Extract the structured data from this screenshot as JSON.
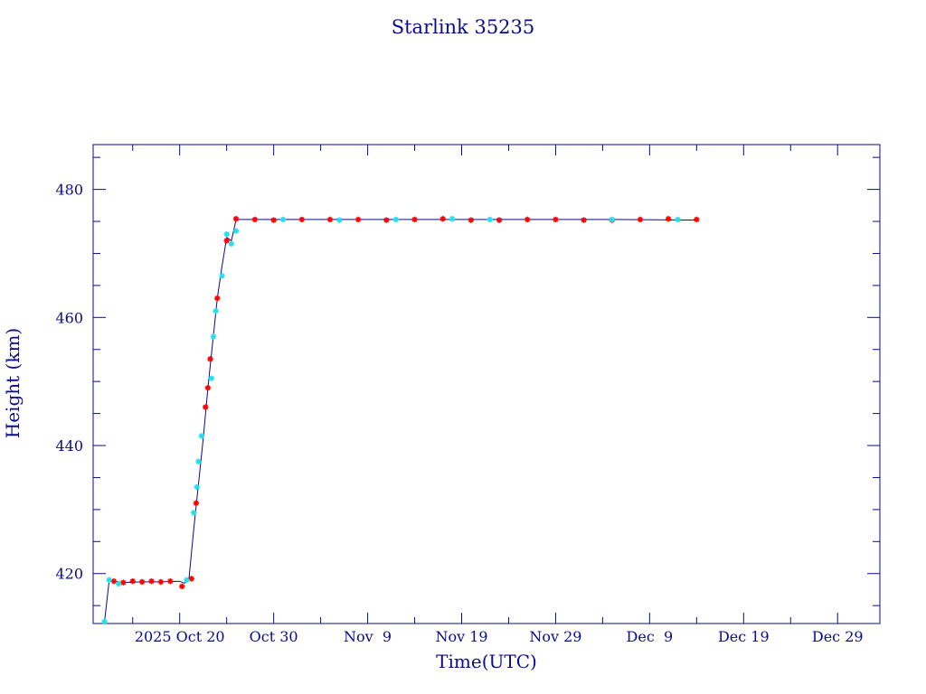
{
  "chart_data": {
    "type": "scatter",
    "title": "Starlink 35235",
    "xlabel": "Time(UTC)",
    "ylabel": "Height (km)",
    "x_ticks": [
      {
        "label": "2025 Oct 20",
        "date": "2025-10-20"
      },
      {
        "label": "Oct 30",
        "date": "2025-10-30"
      },
      {
        "label": "Nov  9",
        "date": "2025-11-09"
      },
      {
        "label": "Nov 19",
        "date": "2025-11-19"
      },
      {
        "label": "Nov 29",
        "date": "2025-11-29"
      },
      {
        "label": "Dec  9",
        "date": "2025-12-09"
      },
      {
        "label": "Dec 19",
        "date": "2025-12-19"
      },
      {
        "label": "Dec 29",
        "date": "2025-12-29"
      }
    ],
    "y_ticks": [
      420,
      440,
      460,
      480
    ],
    "xlim": [
      "2025-10-10T19:00",
      "2026-01-02T12:00"
    ],
    "ylim": [
      412.2,
      487.0
    ],
    "grid": false,
    "series": [
      {
        "color": "#0a0a8c",
        "marker": "line",
        "points": [
          [
            "2025-10-12",
            412.5
          ],
          [
            "2025-10-12T12:00",
            419.0
          ],
          [
            "2025-10-14",
            418.6
          ],
          [
            "2025-10-16",
            418.7
          ],
          [
            "2025-10-18",
            418.7
          ],
          [
            "2025-10-20",
            418.8
          ],
          [
            "2025-10-20T12:00",
            418.5
          ],
          [
            "2025-10-21",
            419.4
          ],
          [
            "2025-10-21T12:00",
            427.0
          ],
          [
            "2025-10-22",
            434.0
          ],
          [
            "2025-10-22T12:00",
            441.0
          ],
          [
            "2025-10-23",
            449.0
          ],
          [
            "2025-10-23T12:00",
            456.0
          ],
          [
            "2025-10-24",
            463.0
          ],
          [
            "2025-10-24T12:00",
            468.0
          ],
          [
            "2025-10-25",
            472.5
          ],
          [
            "2025-10-25T12:00",
            472.0
          ],
          [
            "2025-10-26",
            475.3
          ],
          [
            "2025-11-05",
            475.3
          ],
          [
            "2025-11-15",
            475.3
          ],
          [
            "2025-11-25",
            475.3
          ],
          [
            "2025-12-05",
            475.3
          ],
          [
            "2025-12-14",
            475.2
          ]
        ]
      },
      {
        "color": "#ff0000",
        "marker": "star",
        "points": [
          [
            "2025-10-13",
            418.8
          ],
          [
            "2025-10-14",
            418.6
          ],
          [
            "2025-10-15",
            418.8
          ],
          [
            "2025-10-16",
            418.7
          ],
          [
            "2025-10-17",
            418.8
          ],
          [
            "2025-10-18",
            418.7
          ],
          [
            "2025-10-19",
            418.8
          ],
          [
            "2025-10-20T06:00",
            418.0
          ],
          [
            "2025-10-21T06:00",
            419.2
          ],
          [
            "2025-10-21T18:00",
            431.0
          ],
          [
            "2025-10-22T18:00",
            446.0
          ],
          [
            "2025-10-23",
            449.0
          ],
          [
            "2025-10-23T06:00",
            453.5
          ],
          [
            "2025-10-24",
            463.0
          ],
          [
            "2025-10-25",
            472.0
          ],
          [
            "2025-10-26",
            475.4
          ],
          [
            "2025-10-28",
            475.3
          ],
          [
            "2025-10-30",
            475.2
          ],
          [
            "2025-11-02",
            475.3
          ],
          [
            "2025-11-05",
            475.3
          ],
          [
            "2025-11-08",
            475.3
          ],
          [
            "2025-11-11",
            475.2
          ],
          [
            "2025-11-14",
            475.3
          ],
          [
            "2025-11-17",
            475.4
          ],
          [
            "2025-11-20",
            475.2
          ],
          [
            "2025-11-23",
            475.2
          ],
          [
            "2025-11-26",
            475.3
          ],
          [
            "2025-11-29",
            475.3
          ],
          [
            "2025-12-02",
            475.2
          ],
          [
            "2025-12-05",
            475.2
          ],
          [
            "2025-12-08",
            475.3
          ],
          [
            "2025-12-11",
            475.4
          ],
          [
            "2025-12-14",
            475.3
          ]
        ]
      },
      {
        "color": "#22e0ee",
        "marker": "star",
        "points": [
          [
            "2025-10-12",
            412.5
          ],
          [
            "2025-10-12T12:00",
            419.0
          ],
          [
            "2025-10-13T12:00",
            418.4
          ],
          [
            "2025-10-20T18:00",
            419.0
          ],
          [
            "2025-10-21T12:00",
            429.5
          ],
          [
            "2025-10-21T20:00",
            433.5
          ],
          [
            "2025-10-22",
            437.5
          ],
          [
            "2025-10-22T08:00",
            441.5
          ],
          [
            "2025-10-23T09:00",
            450.5
          ],
          [
            "2025-10-23T14:00",
            457.0
          ],
          [
            "2025-10-23T20:00",
            461.0
          ],
          [
            "2025-10-24T12:00",
            466.5
          ],
          [
            "2025-10-25",
            473.0
          ],
          [
            "2025-10-25T12:00",
            471.5
          ],
          [
            "2025-10-26",
            473.5
          ],
          [
            "2025-10-31",
            475.3
          ],
          [
            "2025-11-06",
            475.2
          ],
          [
            "2025-11-12",
            475.3
          ],
          [
            "2025-11-18",
            475.4
          ],
          [
            "2025-11-22",
            475.3
          ],
          [
            "2025-12-05",
            475.3
          ],
          [
            "2025-12-12",
            475.3
          ]
        ]
      }
    ]
  }
}
